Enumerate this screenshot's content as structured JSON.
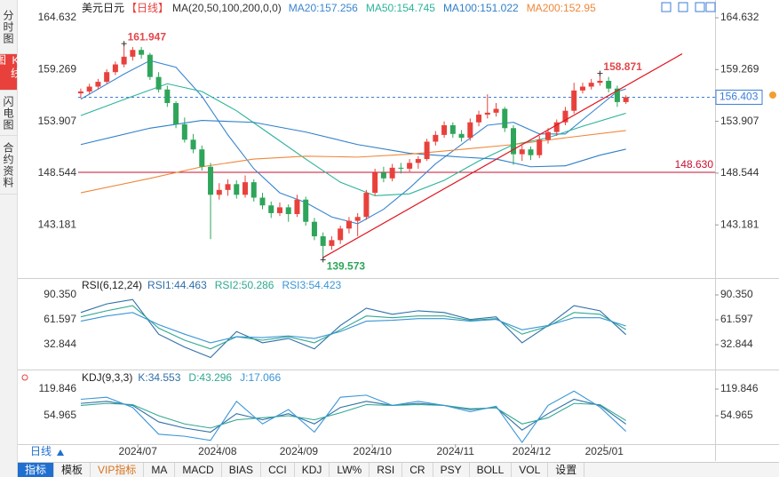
{
  "sidebar_tabs": [
    "分时图",
    "K线图",
    "闪电图",
    "合约资料"
  ],
  "period_selector": "日线",
  "toolbar_tabs": [
    "指标",
    "模板",
    "VIP指标",
    "MA",
    "MACD",
    "BIAS",
    "CCI",
    "KDJ",
    "LW%",
    "RSI",
    "CR",
    "PSY",
    "BOLL",
    "VOL",
    "设置"
  ],
  "chart_data": [
    {
      "type": "candlestick",
      "title": "美元日元",
      "period": "【日线】",
      "indicator": "MA(20,50,100,200,0,0)",
      "up_color": "#e8413c",
      "down_color": "#2ea55a",
      "x": [
        0,
        1,
        2,
        3,
        4,
        5,
        6,
        7,
        8,
        9,
        10,
        11,
        12,
        13,
        14,
        15,
        16,
        17,
        18,
        19,
        20,
        21,
        22,
        23,
        24,
        25,
        26,
        27,
        28,
        29,
        30,
        31,
        32,
        33,
        34,
        35,
        36,
        37,
        38,
        39,
        40,
        41,
        42,
        43,
        44,
        45,
        46,
        47,
        48,
        49,
        50,
        51,
        52,
        53,
        54,
        55,
        56,
        57,
        58,
        59,
        60,
        61,
        62,
        63
      ],
      "ohlc": [
        [
          156.8,
          157.3,
          156.3,
          157.0
        ],
        [
          157.0,
          157.8,
          156.7,
          157.5
        ],
        [
          157.5,
          158.3,
          157.2,
          158.0
        ],
        [
          158.0,
          159.3,
          157.8,
          159.0
        ],
        [
          159.0,
          160.1,
          158.7,
          159.8
        ],
        [
          159.8,
          161.947,
          159.5,
          160.6
        ],
        [
          160.6,
          161.6,
          160.2,
          161.3
        ],
        [
          161.3,
          161.6,
          160.4,
          160.8
        ],
        [
          160.8,
          161.0,
          158.2,
          158.5
        ],
        [
          158.5,
          159.0,
          156.9,
          157.2
        ],
        [
          157.2,
          157.6,
          155.4,
          155.8
        ],
        [
          155.8,
          156.0,
          153.2,
          153.6
        ],
        [
          153.6,
          154.3,
          151.7,
          152.0
        ],
        [
          152.0,
          152.6,
          150.6,
          151.0
        ],
        [
          151.0,
          151.4,
          148.8,
          149.2
        ],
        [
          149.2,
          149.6,
          141.7,
          146.3
        ],
        [
          146.3,
          147.5,
          145.8,
          146.8
        ],
        [
          146.8,
          147.9,
          146.2,
          147.4
        ],
        [
          147.4,
          147.8,
          145.9,
          146.3
        ],
        [
          146.3,
          148.3,
          146.0,
          147.6
        ],
        [
          147.6,
          147.9,
          145.6,
          146.0
        ],
        [
          146.0,
          146.5,
          144.8,
          145.2
        ],
        [
          145.2,
          145.6,
          143.9,
          144.4
        ],
        [
          144.4,
          145.5,
          144.1,
          145.0
        ],
        [
          145.0,
          145.3,
          143.5,
          144.3
        ],
        [
          144.3,
          146.3,
          144.0,
          145.8
        ],
        [
          145.8,
          146.1,
          143.1,
          143.5
        ],
        [
          143.5,
          143.9,
          141.6,
          142.0
        ],
        [
          142.0,
          142.4,
          139.573,
          141.0
        ],
        [
          141.0,
          142.0,
          140.6,
          141.6
        ],
        [
          141.6,
          143.1,
          141.2,
          142.8
        ],
        [
          142.8,
          144.0,
          142.3,
          143.6
        ],
        [
          143.6,
          144.4,
          142.0,
          144.0
        ],
        [
          144.0,
          146.8,
          143.7,
          146.5
        ],
        [
          146.5,
          149.0,
          146.2,
          148.6
        ],
        [
          148.6,
          149.2,
          147.6,
          148.0
        ],
        [
          148.0,
          149.5,
          147.7,
          149.1
        ],
        [
          149.1,
          149.6,
          148.5,
          149.0
        ],
        [
          149.0,
          150.0,
          148.7,
          149.6
        ],
        [
          149.6,
          150.3,
          149.0,
          150.0
        ],
        [
          150.0,
          152.1,
          149.8,
          151.8
        ],
        [
          151.8,
          152.9,
          151.4,
          152.5
        ],
        [
          152.5,
          153.9,
          152.2,
          153.5
        ],
        [
          153.5,
          153.8,
          152.2,
          152.6
        ],
        [
          152.6,
          153.0,
          151.8,
          152.2
        ],
        [
          152.2,
          154.2,
          151.9,
          153.8
        ],
        [
          153.8,
          155.0,
          153.4,
          154.6
        ],
        [
          154.6,
          156.7,
          154.2,
          154.8
        ],
        [
          154.8,
          155.8,
          154.4,
          155.2
        ],
        [
          155.2,
          155.4,
          152.8,
          153.2
        ],
        [
          153.2,
          153.5,
          149.4,
          150.5
        ],
        [
          150.5,
          151.4,
          149.8,
          151.0
        ],
        [
          151.0,
          151.3,
          149.9,
          150.4
        ],
        [
          150.4,
          152.4,
          150.1,
          152.0
        ],
        [
          152.0,
          153.2,
          151.6,
          152.8
        ],
        [
          152.8,
          154.1,
          152.4,
          153.8
        ],
        [
          153.8,
          155.4,
          153.5,
          155.0
        ],
        [
          155.0,
          157.9,
          154.7,
          157.1
        ],
        [
          157.1,
          157.9,
          156.8,
          157.5
        ],
        [
          157.5,
          158.3,
          157.2,
          157.9
        ],
        [
          157.9,
          158.871,
          157.6,
          158.1
        ],
        [
          158.1,
          158.5,
          156.9,
          157.3
        ],
        [
          157.3,
          157.6,
          155.4,
          155.9
        ],
        [
          155.9,
          156.6,
          155.7,
          156.4
        ]
      ],
      "xlim": [
        -0.3,
        73.3
      ],
      "xticks": [
        {
          "value": 6.6,
          "label": "2024/07"
        },
        {
          "value": 15.8,
          "label": "2024/08"
        },
        {
          "value": 25.2,
          "label": "2024/09"
        },
        {
          "value": 33.7,
          "label": "2024/10"
        },
        {
          "value": 43.3,
          "label": "2024/11"
        },
        {
          "value": 52.1,
          "label": "2024/12"
        },
        {
          "value": 60.5,
          "label": "2025/01"
        }
      ],
      "ylim": [
        137.769,
        165.184
      ],
      "yticks": [
        143.181,
        148.544,
        153.907,
        159.269,
        164.632
      ],
      "series": [
        {
          "name": "MA20:",
          "color": "#3a86d0",
          "x": [
            0,
            5,
            8,
            11,
            14,
            17,
            20,
            23,
            26,
            29,
            32,
            35,
            38,
            41,
            44,
            47,
            50,
            53,
            56,
            59,
            62,
            63
          ],
          "values": [
            156.2,
            158.8,
            160.2,
            159.5,
            156.5,
            152.5,
            149.0,
            146.5,
            145.5,
            144.0,
            143.3,
            144.8,
            147.0,
            149.5,
            151.5,
            153.5,
            153.8,
            152.6,
            152.6,
            154.8,
            157.0,
            157.256
          ]
        },
        {
          "name": "MA50:",
          "color": "#2bb39a",
          "x": [
            0,
            6,
            10,
            14,
            18,
            22,
            26,
            30,
            34,
            38,
            42,
            46,
            50,
            54,
            58,
            63
          ],
          "values": [
            154.5,
            156.5,
            157.8,
            157.0,
            155.0,
            152.5,
            150.0,
            147.6,
            146.2,
            146.4,
            147.8,
            149.8,
            151.5,
            152.2,
            153.4,
            154.745
          ]
        },
        {
          "name": "MA100:",
          "color": "#2f7fc9",
          "x": [
            0,
            8,
            14,
            20,
            26,
            32,
            38,
            44,
            48,
            52,
            56,
            60,
            63
          ],
          "values": [
            151.5,
            153.2,
            154.0,
            153.8,
            152.8,
            151.5,
            150.6,
            150.2,
            150.0,
            149.2,
            149.3,
            150.4,
            151.022
          ]
        },
        {
          "name": "MA200:",
          "color": "#f0873a",
          "x": [
            0,
            8,
            14,
            20,
            26,
            32,
            38,
            44,
            50,
            56,
            63
          ],
          "values": [
            146.5,
            148.0,
            149.2,
            150.0,
            150.3,
            150.2,
            150.5,
            151.0,
            151.5,
            152.2,
            152.95
          ]
        }
      ],
      "annotations": [
        {
          "x": 5,
          "value": 161.947,
          "color": "#e2474b"
        },
        {
          "x": 28,
          "value": 139.573,
          "color": "#2ea55a"
        },
        {
          "x": 60,
          "value": 158.871,
          "color": "#e2474b"
        }
      ],
      "trendline": {
        "x": [
          28,
          69.5
        ],
        "values": [
          139.8,
          160.9
        ],
        "color": "#e0141e"
      },
      "hline": {
        "value": {
          "value": 148.63,
          "label": "148.630"
        },
        "color": "#c8102e"
      },
      "last_price": {
        "value": 156.403,
        "color": "#3b7dd8"
      }
    },
    {
      "type": "line",
      "title": "RSI(6,12,24)",
      "xlim": [
        -0.3,
        73.3
      ],
      "x": [
        0,
        3,
        6,
        9,
        12,
        15,
        18,
        21,
        24,
        27,
        30,
        33,
        36,
        39,
        42,
        45,
        48,
        51,
        54,
        57,
        60,
        63
      ],
      "ylim": [
        4.1,
        106.8
      ],
      "yticks": [
        32.844,
        61.597,
        {
          "value": 90.35,
          "label": "90.350"
        }
      ],
      "series": [
        {
          "name": "RSI1:",
          "color": "#2f6fa8",
          "values": [
            70,
            80,
            85,
            45,
            30,
            18,
            48,
            35,
            40,
            28,
            55,
            75,
            68,
            72,
            70,
            62,
            65,
            35,
            55,
            78,
            72,
            44.463
          ]
        },
        {
          "name": "RSI2:",
          "color": "#30a890",
          "values": [
            65,
            72,
            78,
            52,
            38,
            28,
            42,
            38,
            42,
            35,
            50,
            66,
            64,
            66,
            66,
            61,
            63,
            45,
            54,
            70,
            68,
            50.286
          ]
        },
        {
          "name": "RSI3:",
          "color": "#3a95d6",
          "values": [
            60,
            66,
            70,
            56,
            45,
            35,
            42,
            41,
            43,
            40,
            48,
            60,
            61,
            63,
            63,
            60,
            62,
            50,
            55,
            64,
            64,
            54.423
          ]
        }
      ]
    },
    {
      "type": "line",
      "title": "KDJ(9,3,3)",
      "xlim": [
        -0.3,
        73.3
      ],
      "x": [
        0,
        3,
        6,
        9,
        12,
        15,
        18,
        21,
        24,
        27,
        30,
        33,
        36,
        39,
        42,
        45,
        48,
        51,
        54,
        57,
        60,
        63
      ],
      "ylim": [
        -14.2,
        158.8
      ],
      "yticks": [
        54.965,
        119.846
      ],
      "series": [
        {
          "name": "K:",
          "color": "#2f6fa8",
          "values": [
            85,
            90,
            80,
            40,
            25,
            15,
            60,
            45,
            60,
            35,
            75,
            90,
            80,
            85,
            80,
            70,
            75,
            20,
            60,
            95,
            80,
            34.553
          ]
        },
        {
          "name": "D:",
          "color": "#30a890",
          "values": [
            80,
            85,
            82,
            55,
            35,
            25,
            45,
            50,
            55,
            45,
            62,
            82,
            80,
            82,
            80,
            72,
            74,
            35,
            50,
            85,
            82,
            43.296
          ]
        },
        {
          "name": "J:",
          "color": "#3a95d6",
          "values": [
            95,
            100,
            75,
            10,
            5,
            -5,
            90,
            35,
            70,
            15,
            100,
            105,
            80,
            90,
            80,
            65,
            78,
            -10,
            80,
            115,
            76,
            17.066
          ]
        }
      ]
    }
  ]
}
